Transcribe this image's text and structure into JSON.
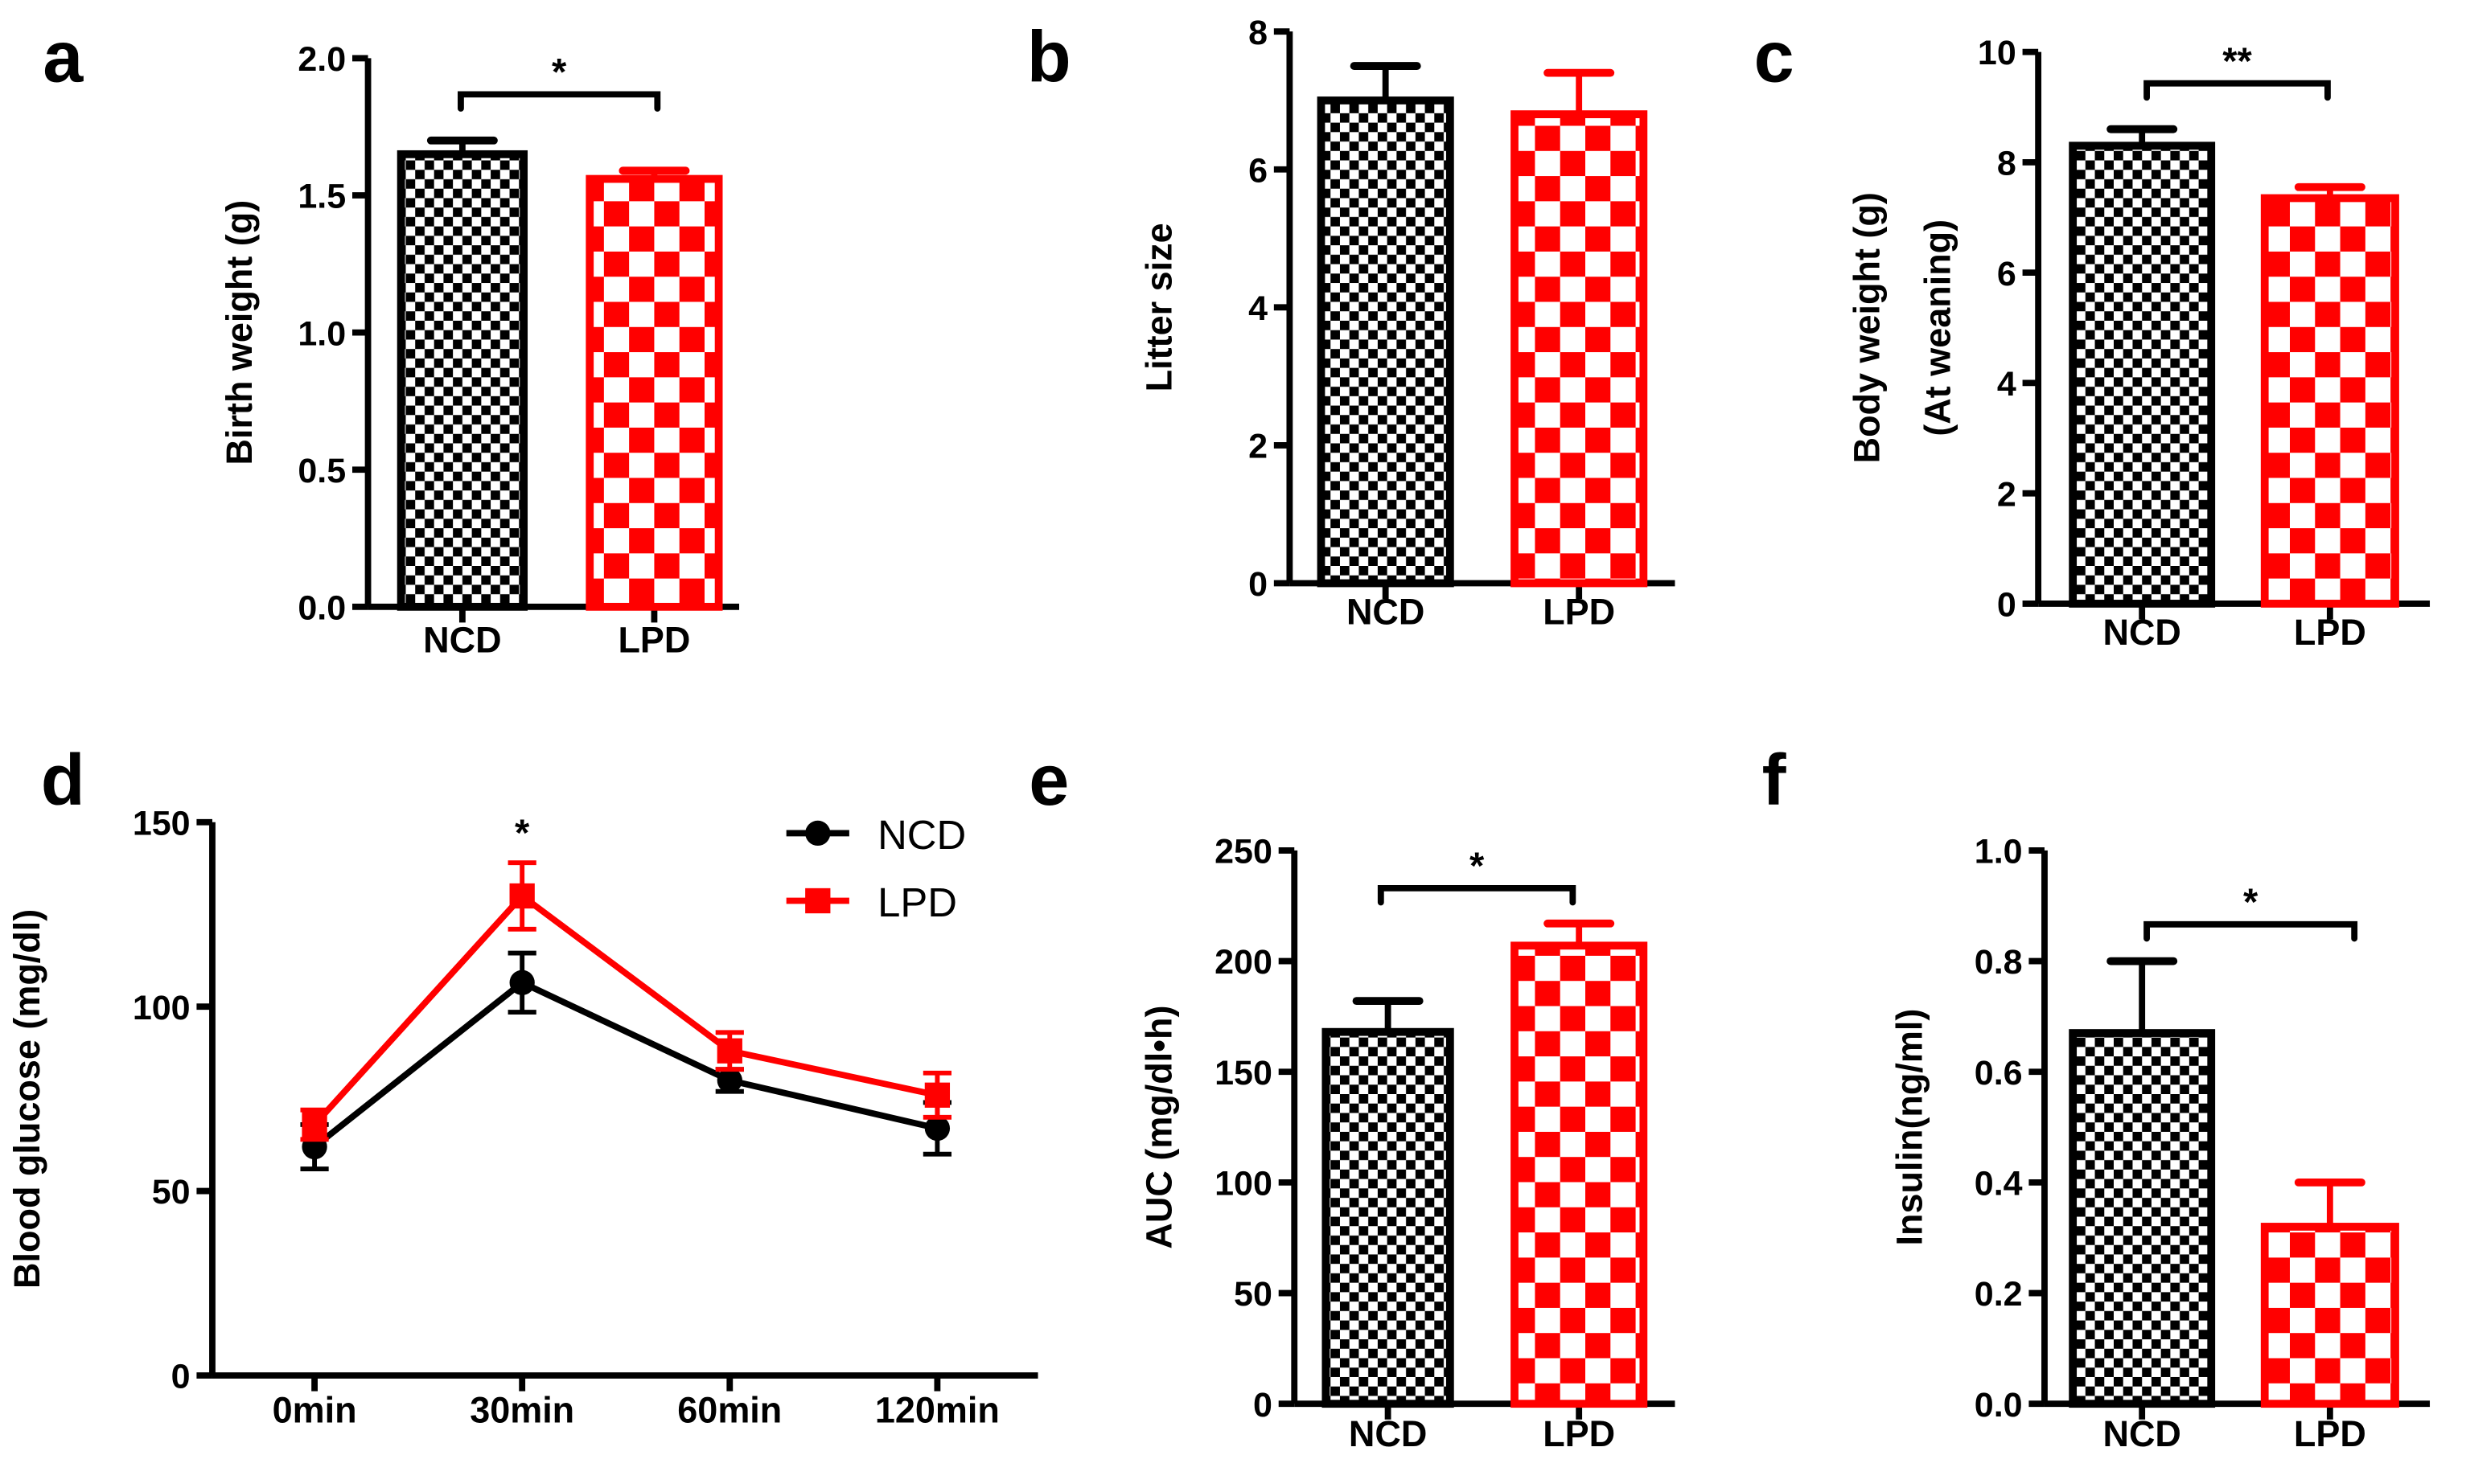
{
  "colors": {
    "ncd": "#000000",
    "lpd": "#ff0000"
  },
  "chart_data": [
    {
      "panel": "a",
      "type": "bar",
      "ylabel": [
        "Birth weight (g)"
      ],
      "categories": [
        "NCD",
        "LPD"
      ],
      "values": [
        1.65,
        1.56
      ],
      "errors": [
        0.05,
        0.03
      ],
      "ylim": [
        0,
        2.0
      ],
      "yticks": [
        "0.0",
        "0.5",
        "1.0",
        "1.5",
        "2.0"
      ],
      "significance": "*"
    },
    {
      "panel": "b",
      "type": "bar",
      "ylabel": [
        "Litter size"
      ],
      "categories": [
        "NCD",
        "LPD"
      ],
      "values": [
        7.0,
        6.8
      ],
      "errors": [
        0.5,
        0.6
      ],
      "ylim": [
        0,
        8
      ],
      "yticks": [
        "0",
        "2",
        "4",
        "6",
        "8"
      ],
      "significance": ""
    },
    {
      "panel": "c",
      "type": "bar",
      "ylabel": [
        "Body weight (g)",
        "(At weaning)"
      ],
      "categories": [
        "NCD",
        "LPD"
      ],
      "values": [
        8.3,
        7.35
      ],
      "errors": [
        0.3,
        0.2
      ],
      "ylim": [
        0,
        10
      ],
      "yticks": [
        "0",
        "2",
        "4",
        "6",
        "8",
        "10"
      ],
      "significance": "**"
    },
    {
      "panel": "d",
      "type": "line",
      "ylabel": [
        "Blood glucose (mg/dl)"
      ],
      "categories": [
        "0min",
        "30min",
        "60min",
        "120min"
      ],
      "ylim": [
        0,
        150
      ],
      "yticks": [
        "0",
        "50",
        "100",
        "150"
      ],
      "series": [
        {
          "name": "NCD",
          "values": [
            62,
            106.5,
            80,
            67
          ],
          "errors": [
            6,
            8,
            3,
            7
          ]
        },
        {
          "name": "LPD",
          "values": [
            68,
            130,
            88,
            76
          ],
          "errors": [
            4,
            9,
            5,
            6
          ]
        }
      ],
      "significance": [
        {
          "at": "30min",
          "label": "*"
        }
      ],
      "legend": "top-right"
    },
    {
      "panel": "e",
      "type": "bar",
      "ylabel": [
        "AUC (mg/dl•h)"
      ],
      "categories": [
        "NCD",
        "LPD"
      ],
      "values": [
        168,
        207
      ],
      "errors": [
        14,
        10
      ],
      "ylim": [
        0,
        250
      ],
      "yticks": [
        "0",
        "50",
        "100",
        "150",
        "200",
        "250"
      ],
      "significance": "*"
    },
    {
      "panel": "f",
      "type": "bar",
      "ylabel": [
        "Insulin(ng/ml)"
      ],
      "categories": [
        "NCD",
        "LPD"
      ],
      "values": [
        0.67,
        0.32
      ],
      "errors": [
        0.13,
        0.08
      ],
      "ylim": [
        0,
        1.0
      ],
      "yticks": [
        "0.0",
        "0.2",
        "0.4",
        "0.6",
        "0.8",
        "1.0"
      ],
      "significance": "*"
    }
  ]
}
